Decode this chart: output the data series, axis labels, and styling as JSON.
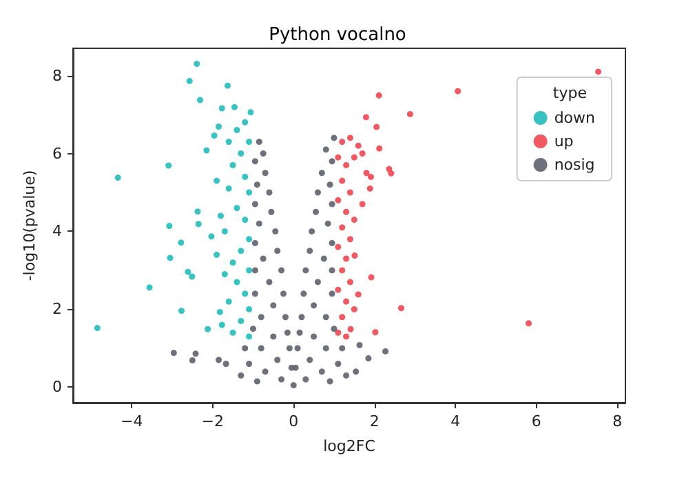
{
  "chart_data": {
    "type": "scatter",
    "title": "Python vocalno",
    "xlabel": "log2FC",
    "ylabel": "-log10(pvalue)",
    "legend_title": "type",
    "legend": "top right",
    "grid": false,
    "marker": "circle",
    "xlim": [
      -5.45,
      8.2
    ],
    "xticks": [
      -4,
      -2,
      0,
      2,
      4,
      6,
      8
    ],
    "ylim": [
      -0.4,
      8.7
    ],
    "yticks": [
      0,
      2,
      4,
      6,
      8
    ],
    "series": [
      {
        "name": "down",
        "color": "#22bdbd",
        "x": [
          -2.39,
          -2.57,
          -2.31,
          -1.63,
          -1.77,
          -1.46,
          -1.06,
          -1.85,
          -1.96,
          -2.15,
          -3.09,
          -4.34,
          -2.37,
          -2.35,
          -3.07,
          -2.78,
          -3.05,
          -2.03,
          -2.61,
          -2.51,
          -3.56,
          -2.77,
          -4.85,
          -2.12,
          -1.82,
          -1.77,
          -1.2,
          -1.1,
          -1.3,
          -1.5,
          -1.2,
          -1.6,
          -1.1,
          -1.4,
          -1.2,
          -1.7,
          -1.1,
          -1.3,
          -1.5,
          -1.1,
          -1.4,
          -1.2,
          -1.6,
          -1.1,
          -1.3,
          -1.5,
          -1.1,
          -1.9,
          -1.8,
          -1.9,
          -1.7,
          -1.6,
          -1.4
        ],
        "values": [
          8.3,
          7.86,
          7.37,
          7.74,
          7.16,
          7.19,
          7.06,
          6.69,
          6.46,
          6.08,
          5.69,
          5.38,
          4.51,
          4.19,
          4.14,
          3.71,
          3.32,
          3.87,
          2.96,
          2.84,
          2.56,
          1.96,
          1.52,
          1.49,
          1.93,
          1.6,
          6.8,
          6.3,
          6.0,
          5.7,
          5.4,
          5.1,
          5.0,
          4.6,
          4.3,
          4.0,
          3.8,
          3.5,
          3.2,
          3.0,
          2.7,
          2.4,
          2.2,
          2.0,
          1.7,
          1.4,
          1.3,
          5.3,
          4.4,
          3.4,
          2.9,
          6.3,
          6.6
        ]
      },
      {
        "name": "up",
        "color": "#ef4650",
        "x": [
          7.53,
          4.06,
          2.11,
          2.88,
          1.79,
          2.05,
          2.12,
          2.36,
          2.41,
          1.91,
          1.89,
          1.51,
          1.92,
          2.66,
          5.81,
          2.02,
          1.6,
          1.41,
          1.2,
          1.4,
          1.6,
          1.1,
          1.3,
          1.5,
          1.2,
          1.4,
          1.1,
          1.3,
          1.5,
          1.2,
          1.4,
          1.1,
          1.3,
          1.2,
          1.4,
          1.1,
          1.3,
          1.5,
          1.2,
          1.1,
          1.3,
          1.7,
          1.8,
          1.7
        ],
        "values": [
          8.1,
          7.6,
          7.49,
          7.01,
          6.93,
          6.68,
          6.13,
          5.6,
          5.49,
          5.4,
          5.1,
          3.38,
          2.82,
          2.03,
          1.64,
          1.41,
          2.38,
          1.49,
          6.3,
          6.4,
          6.2,
          5.9,
          5.7,
          5.9,
          5.3,
          5.0,
          4.8,
          4.5,
          4.3,
          4.1,
          3.8,
          3.6,
          3.3,
          3.0,
          2.7,
          2.5,
          2.2,
          2.0,
          1.8,
          1.4,
          1.3,
          4.7,
          5.5,
          6.0
        ]
      },
      {
        "name": "nosig",
        "color": "#5e616d",
        "x": [
          -0.85,
          -0.75,
          -0.95,
          -0.7,
          -0.9,
          -0.6,
          -0.95,
          -0.55,
          -0.85,
          -0.45,
          -0.95,
          -0.4,
          -0.75,
          -0.95,
          -0.3,
          -0.6,
          -0.25,
          -0.95,
          -0.5,
          -0.2,
          -0.8,
          -1.0,
          -0.15,
          -0.5,
          -0.1,
          -0.8,
          -1.2,
          -0.4,
          -1.1,
          -0.05,
          -0.7,
          -1.3,
          -0.3,
          -0.9,
          0,
          1.0,
          0.8,
          0.95,
          0.7,
          0.9,
          0.6,
          0.95,
          0.55,
          0.85,
          0.45,
          0.95,
          0.4,
          0.75,
          0.95,
          0.3,
          0.6,
          0.25,
          0.95,
          0.5,
          0.2,
          0.8,
          1.0,
          0.15,
          0.5,
          0.1,
          0.8,
          1.2,
          0.4,
          1.1,
          0.05,
          0.7,
          1.3,
          0.3,
          0.9,
          -2.96,
          -2.42,
          -2.5,
          -1.85,
          -1.67,
          2.27,
          1.63,
          1.85,
          1.54
        ],
        "values": [
          6.3,
          6.0,
          5.8,
          5.5,
          5.2,
          5.0,
          4.7,
          4.5,
          4.2,
          4.0,
          3.7,
          3.5,
          3.3,
          3.0,
          3.0,
          2.7,
          2.4,
          2.4,
          2.1,
          1.8,
          1.8,
          1.5,
          1.4,
          1.3,
          1.0,
          1.0,
          1.0,
          0.7,
          0.6,
          0.5,
          0.4,
          0.3,
          0.2,
          0.15,
          0.05,
          6.4,
          6.1,
          5.8,
          5.5,
          5.2,
          5.0,
          4.7,
          4.5,
          4.2,
          4.0,
          3.7,
          3.5,
          3.3,
          3.0,
          3.0,
          2.7,
          2.4,
          2.4,
          2.1,
          1.8,
          1.8,
          1.5,
          1.4,
          1.3,
          1.0,
          1.0,
          1.0,
          0.7,
          0.6,
          0.5,
          0.4,
          0.3,
          0.2,
          0.15,
          0.88,
          0.86,
          0.69,
          0.7,
          0.6,
          0.92,
          1.08,
          0.74,
          0.4
        ]
      }
    ]
  }
}
